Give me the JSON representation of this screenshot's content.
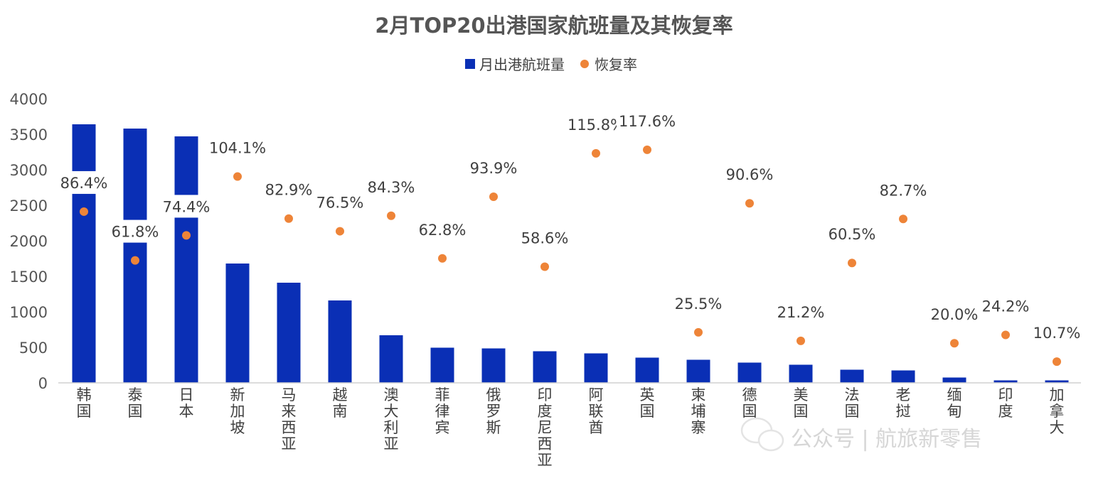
{
  "chart_data": {
    "type": "bar",
    "title": "2月TOP20出港国家航班量及其恢复率",
    "categories": [
      "韩国",
      "泰国",
      "日本",
      "新加坡",
      "马来西亚",
      "越南",
      "澳大利亚",
      "菲律宾",
      "俄罗斯",
      "印度尼西亚",
      "阿联酋",
      "英国",
      "柬埔寨",
      "德国",
      "美国",
      "法国",
      "老挝",
      "缅甸",
      "印度",
      "加拿大"
    ],
    "series": [
      {
        "name": "月出港航班量",
        "type": "bar",
        "color": "#0a2fb5",
        "values": [
          3640,
          3580,
          3470,
          1680,
          1410,
          1160,
          670,
          495,
          485,
          445,
          415,
          355,
          325,
          285,
          255,
          185,
          175,
          75,
          35,
          35
        ]
      },
      {
        "name": "恢复率",
        "type": "scatter",
        "color": "#ee8438",
        "values": [
          86.4,
          61.8,
          74.4,
          104.1,
          82.9,
          76.5,
          84.3,
          62.8,
          93.9,
          58.6,
          115.8,
          117.6,
          25.5,
          90.6,
          21.2,
          60.5,
          82.7,
          20.0,
          24.2,
          10.7
        ],
        "labels": [
          "86.4%",
          "61.8%",
          "74.4%",
          "104.1%",
          "82.9%",
          "76.5%",
          "84.3%",
          "62.8%",
          "93.9%",
          "58.6%",
          "115.8%",
          "117.6%",
          "25.5%",
          "90.6%",
          "21.2%",
          "60.5%",
          "82.7%",
          "20.0%",
          "24.2%",
          "10.7%"
        ]
      }
    ],
    "y_ticks": [
      "0",
      "500",
      "1000",
      "1500",
      "2000",
      "2500",
      "3000",
      "3500",
      "4000"
    ],
    "ylim": [
      0,
      4000
    ],
    "legend_position": "top-center",
    "grid": false
  },
  "watermark": {
    "text": "公众号 | 航旅新零售"
  }
}
